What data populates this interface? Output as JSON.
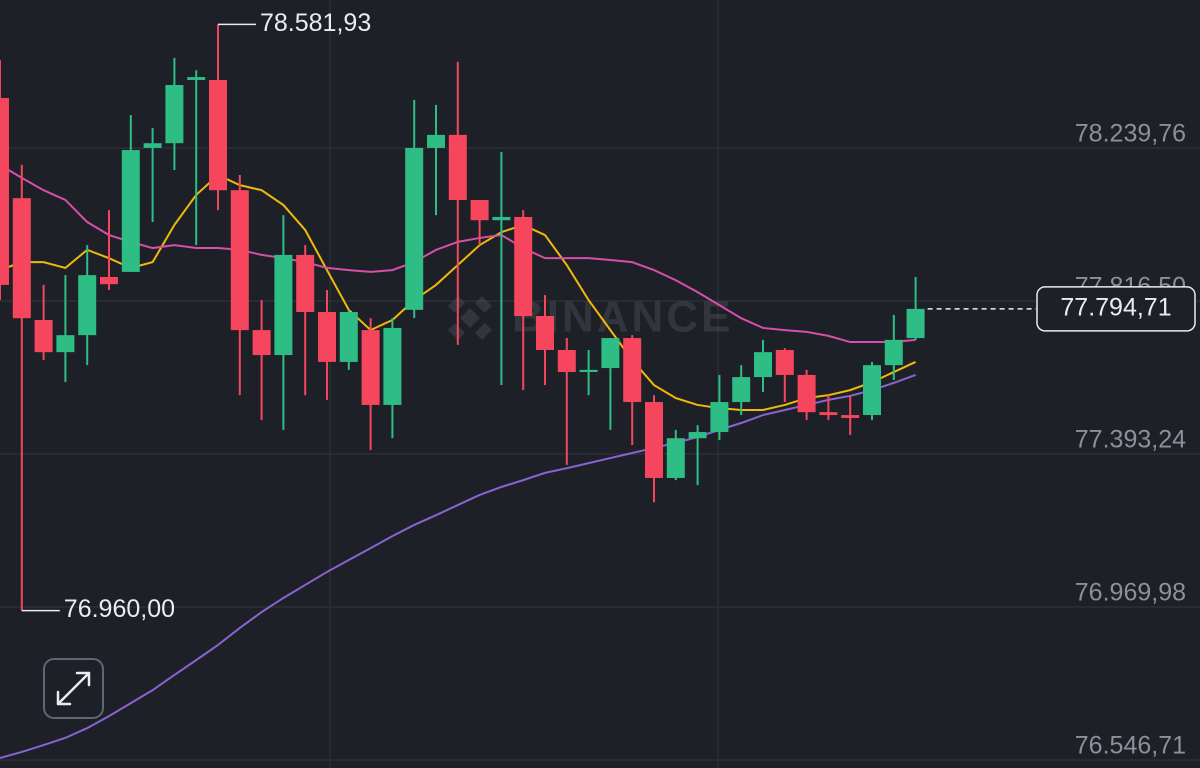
{
  "chart_data": {
    "type": "candlestick",
    "watermark": "BINANCE",
    "ylim": [
      76524.6,
      78649.2
    ],
    "yticks": [
      {
        "value": 78239.76,
        "label": "78.239,76"
      },
      {
        "value": 77816.5,
        "label": "77.816,50"
      },
      {
        "value": 77393.24,
        "label": "77.393,24"
      },
      {
        "value": 76969.98,
        "label": "76.969,98"
      },
      {
        "value": 76546.71,
        "label": "76.546,71"
      }
    ],
    "grid": true,
    "up_color": "#2ebd85",
    "down_color": "#f6465d",
    "open": [
      78378,
      78101,
      77764,
      77675,
      77722,
      77883,
      77897,
      78240,
      78253,
      78428,
      78428,
      78123,
      77736,
      77667,
      77944,
      77786,
      77648,
      77736,
      77529,
      77792,
      78240,
      78276,
      78096,
      78040,
      78049,
      77775,
      77681,
      77620,
      77631,
      77714,
      77537,
      77327,
      77437,
      77454,
      77537,
      77606,
      77681,
      77612,
      77509,
      77501,
      77501,
      77639,
      77714
    ],
    "high": [
      78483,
      78193,
      77861,
      77888,
      77971,
      78068,
      78331,
      78295,
      78489,
      78455,
      78581.93,
      78165,
      77819,
      78054,
      77971,
      77847,
      77792,
      77769,
      77769,
      78373,
      78359,
      78478,
      78096,
      78229,
      78068,
      77833,
      77714,
      77681,
      77714,
      77722,
      77556,
      77460,
      77473,
      77612,
      77639,
      77709,
      77686,
      77626,
      77556,
      77556,
      77648,
      77778,
      77883
    ],
    "low": [
      77819,
      76960,
      77653,
      77592,
      77639,
      77847,
      77897,
      78035,
      78179,
      77971,
      78068,
      77556,
      77487,
      77460,
      77556,
      77543,
      77626,
      77404,
      77437,
      77769,
      78054,
      77695,
      77971,
      77584,
      77570,
      77584,
      77363,
      77556,
      77460,
      77418,
      77260,
      77321,
      77307,
      77432,
      77501,
      77565,
      77537,
      77487,
      77487,
      77446,
      77487,
      77598,
      77709
    ],
    "close": [
      77861,
      77769,
      77675,
      77722,
      77888,
      77863,
      78234,
      78253,
      78414,
      78436,
      78123,
      77736,
      77667,
      77944,
      77786,
      77648,
      77786,
      77529,
      77742,
      78240,
      78276,
      78096,
      78040,
      78049,
      77775,
      77681,
      77620,
      77626,
      77714,
      77537,
      77327,
      77437,
      77454,
      77537,
      77606,
      77675,
      77612,
      77509,
      77501,
      77493,
      77639,
      77709,
      77794.71
    ],
    "lines": [
      {
        "color": "#f0b90b",
        "values": [
          77902,
          77924,
          77924,
          77908,
          77958,
          77935,
          77908,
          77924,
          78027,
          78110,
          78165,
          78137,
          78123,
          78082,
          78013,
          77902,
          77792,
          77736,
          77764,
          77819,
          77861,
          77916,
          77971,
          78007,
          78027,
          77999,
          77916,
          77819,
          77736,
          77653,
          77584,
          77548,
          77529,
          77520,
          77515,
          77515,
          77529,
          77548,
          77556,
          77570,
          77592,
          77620,
          77648
        ]
      },
      {
        "color": "#d64fa8",
        "values": [
          78193,
          78157,
          78123,
          78096,
          78035,
          77999,
          77980,
          77963,
          77971,
          77963,
          77963,
          77958,
          77944,
          77935,
          77924,
          77908,
          77902,
          77897,
          77902,
          77924,
          77958,
          77980,
          77991,
          77999,
          77963,
          77935,
          77935,
          77935,
          77930,
          77924,
          77902,
          77874,
          77841,
          77805,
          77769,
          77742,
          77736,
          77731,
          77720,
          77703,
          77703,
          77703,
          77709
        ]
      },
      {
        "color": "#8a63d2",
        "values": [
          76552,
          76569,
          76588,
          76608,
          76635,
          76668,
          76704,
          76740,
          76782,
          76823,
          76865,
          76912,
          76956,
          76995,
          77031,
          77067,
          77100,
          77133,
          77166,
          77197,
          77224,
          77252,
          77280,
          77302,
          77321,
          77341,
          77354,
          77368,
          77382,
          77396,
          77410,
          77424,
          77440,
          77460,
          77479,
          77501,
          77515,
          77529,
          77543,
          77554,
          77570,
          77590,
          77612
        ]
      }
    ],
    "high_label": {
      "value": 78581.93,
      "label": "78.581,93"
    },
    "low_label": {
      "value": 76960.0,
      "label": "76.960,00"
    },
    "last_price": {
      "value": 77794.71,
      "label": "77.794,71"
    }
  }
}
